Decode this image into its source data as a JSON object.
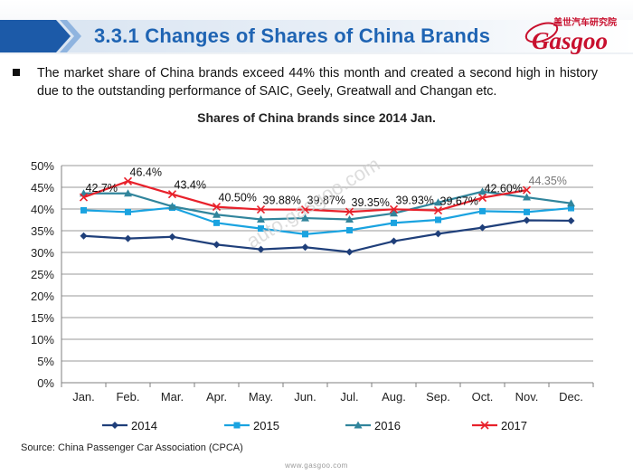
{
  "header": {
    "title": "3.3.1 Changes of Shares of China Brands",
    "logo_cn": "盖世汽车研究院",
    "logo_word": "Gasgoo"
  },
  "summary": "The market share of China brands exceed 44% this month and created a second high in history due to the outstanding performance of SAIC, Geely, Greatwall and Changan etc.",
  "footer": {
    "source": "Source: China Passenger Car Association (CPCA)",
    "url": "www.gasgoo.com"
  },
  "watermark": "auto.gasgoo.com",
  "colors": {
    "title": "#1f64b3",
    "brand_red": "#c8102e"
  },
  "chart_data": {
    "type": "line",
    "title": "Shares of China brands since 2014 Jan.",
    "categories": [
      "Jan.",
      "Feb.",
      "Mar.",
      "Apr.",
      "May.",
      "Jun.",
      "Jul.",
      "Aug.",
      "Sep.",
      "Oct.",
      "Nov.",
      "Dec."
    ],
    "y_ticks": [
      "0%",
      "5%",
      "10%",
      "15%",
      "20%",
      "25%",
      "30%",
      "35%",
      "40%",
      "45%",
      "50%"
    ],
    "ylim": [
      0,
      50
    ],
    "grid": true,
    "legend_position": "bottom",
    "series": [
      {
        "name": "2014",
        "color": "#1f3f7a",
        "marker": "diamond",
        "values": [
          33.8,
          33.2,
          33.6,
          31.8,
          30.7,
          31.2,
          30.1,
          32.6,
          34.3,
          35.7,
          37.4,
          37.3
        ]
      },
      {
        "name": "2015",
        "color": "#1aa3e0",
        "marker": "square",
        "values": [
          39.7,
          39.3,
          40.3,
          36.8,
          35.5,
          34.2,
          35.1,
          36.8,
          37.5,
          39.5,
          39.3,
          40.2
        ]
      },
      {
        "name": "2016",
        "color": "#31859c",
        "marker": "triangle",
        "values": [
          43.6,
          43.6,
          40.6,
          38.7,
          37.6,
          37.9,
          37.6,
          39.0,
          41.5,
          44.0,
          42.7,
          41.3
        ]
      },
      {
        "name": "2017",
        "color": "#e8212b",
        "marker": "x",
        "values": [
          42.7,
          46.4,
          43.4,
          40.5,
          39.88,
          39.87,
          39.35,
          39.93,
          39.67,
          42.6,
          44.35,
          null
        ],
        "labels": [
          "42.7%",
          "46.4%",
          "43.4%",
          "40.50%",
          "39.88%",
          "39.87%",
          "39.35%",
          "39.93%",
          "39.67%",
          "42.60%",
          "44.35%",
          ""
        ]
      }
    ]
  }
}
